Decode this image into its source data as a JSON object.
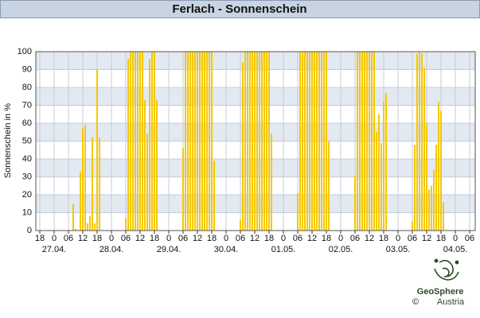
{
  "chart_data": {
    "type": "bar",
    "title": "Ferlach - Sonnenschein",
    "y_label": "Sonnenschein in %",
    "x": [
      6,
      7,
      8,
      9,
      10,
      11,
      12,
      13,
      14,
      15,
      16,
      17,
      18,
      19,
      30,
      31,
      32,
      33,
      34,
      35,
      36,
      37,
      38,
      39,
      40,
      41,
      42,
      43,
      54,
      55,
      56,
      57,
      58,
      59,
      60,
      61,
      62,
      63,
      64,
      65,
      66,
      67,
      78,
      79,
      80,
      81,
      82,
      83,
      84,
      85,
      86,
      87,
      88,
      89,
      90,
      91,
      102,
      103,
      104,
      105,
      106,
      107,
      108,
      109,
      110,
      111,
      112,
      113,
      114,
      115,
      126,
      127,
      128,
      129,
      130,
      131,
      132,
      133,
      134,
      135,
      136,
      137,
      138,
      139,
      150,
      151,
      152,
      153,
      154,
      155,
      156,
      157,
      158,
      159,
      160,
      161,
      162,
      163
    ],
    "values": [
      0,
      0,
      15,
      1,
      0,
      33,
      57,
      59,
      4,
      8,
      52,
      4,
      90,
      52,
      7,
      96,
      100,
      100,
      100,
      100,
      100,
      100,
      73,
      54,
      96,
      100,
      100,
      73,
      46,
      100,
      100,
      100,
      100,
      100,
      100,
      100,
      100,
      100,
      100,
      100,
      100,
      39,
      6,
      94,
      100,
      100,
      100,
      100,
      100,
      100,
      100,
      100,
      100,
      100,
      100,
      54,
      21,
      100,
      100,
      100,
      100,
      100,
      100,
      100,
      100,
      100,
      100,
      100,
      100,
      50,
      31,
      100,
      100,
      100,
      100,
      100,
      100,
      100,
      100,
      55,
      65,
      49,
      72,
      77,
      5,
      48,
      99,
      100,
      99,
      91,
      60,
      23,
      25,
      34,
      48,
      72,
      67,
      16
    ],
    "color": "#f5c800",
    "xlim": [
      -7.67,
      176.33
    ],
    "ylim": [
      0,
      100
    ],
    "yticks": [
      0,
      10,
      20,
      30,
      40,
      50,
      60,
      70,
      80,
      90,
      100
    ],
    "xticks": [
      {
        "value": -6,
        "label": "18"
      },
      0,
      {
        "value": 6,
        "label": "06"
      },
      {
        "value": 12,
        "label": "12"
      },
      {
        "value": 18,
        "label": "18"
      },
      {
        "value": 24,
        "label": "0"
      },
      {
        "value": 30,
        "label": "06"
      },
      {
        "value": 36,
        "label": "12"
      },
      {
        "value": 42,
        "label": "18"
      },
      {
        "value": 48,
        "label": "0"
      },
      {
        "value": 54,
        "label": "06"
      },
      {
        "value": 60,
        "label": "12"
      },
      {
        "value": 66,
        "label": "18"
      },
      {
        "value": 72,
        "label": "0"
      },
      {
        "value": 78,
        "label": "06"
      },
      {
        "value": 84,
        "label": "12"
      },
      {
        "value": 90,
        "label": "18"
      },
      {
        "value": 96,
        "label": "0"
      },
      {
        "value": 102,
        "label": "06"
      },
      {
        "value": 108,
        "label": "12"
      },
      {
        "value": 114,
        "label": "18"
      },
      {
        "value": 120,
        "label": "0"
      },
      {
        "value": 126,
        "label": "06"
      },
      {
        "value": 132,
        "label": "12"
      },
      {
        "value": 138,
        "label": "18"
      },
      {
        "value": 144,
        "label": "0"
      },
      {
        "value": 150,
        "label": "06"
      },
      {
        "value": 156,
        "label": "12"
      },
      {
        "value": 162,
        "label": "18"
      },
      {
        "value": 168,
        "label": "0"
      },
      {
        "value": 174,
        "label": "06"
      }
    ],
    "xdate_labels": [
      {
        "value": 0,
        "label": "27.04."
      },
      {
        "value": 24,
        "label": "28.04."
      },
      {
        "value": 48,
        "label": "29.04."
      },
      {
        "value": 72,
        "label": "30.04."
      },
      {
        "value": 96,
        "label": "01.05."
      },
      {
        "value": 120,
        "label": "02.05."
      },
      {
        "value": 144,
        "label": "03.05."
      },
      {
        "value": 168,
        "label": "04.05."
      }
    ],
    "grid": true
  },
  "logo": {
    "name": "GeoSphere",
    "sub": "Austria",
    "copyright": "©"
  }
}
